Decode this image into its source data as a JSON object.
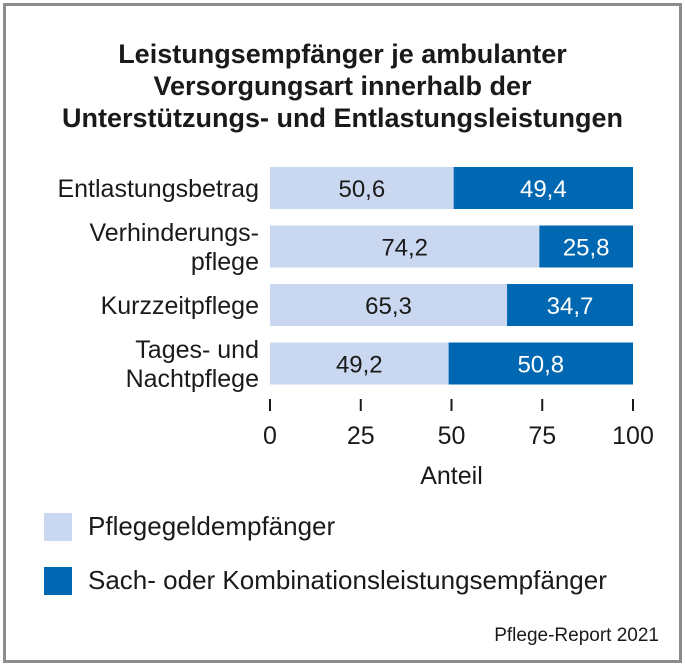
{
  "colors": {
    "series1": "#c9d8f0",
    "series2": "#0068b3",
    "border": "#8c8c8c"
  },
  "chart_data": {
    "type": "bar",
    "orientation": "horizontal",
    "stacked": true,
    "title": [
      "Leistungsempfänger je ambulanter",
      "Versorgungsart innerhalb der",
      "Unterstützungs- und Entlastungsleistungen"
    ],
    "categories": [
      [
        "Entlastungsbetrag"
      ],
      [
        "Verhinderungs-",
        "pflege"
      ],
      [
        "Kurzzeitpflege"
      ],
      [
        "Tages- und",
        "Nachtpflege"
      ]
    ],
    "series": [
      {
        "name": "Pflegegeldempfänger",
        "values": [
          50.6,
          74.2,
          65.3,
          49.2
        ],
        "labels": [
          "50,6",
          "74,2",
          "65,3",
          "49,2"
        ]
      },
      {
        "name": "Sach- oder Kombinationsleistungsempfänger",
        "values": [
          49.4,
          25.8,
          34.7,
          50.8
        ],
        "labels": [
          "49,4",
          "25,8",
          "34,7",
          "50,8"
        ]
      }
    ],
    "xlabel": "Anteil",
    "xlim": [
      0,
      100
    ],
    "xticks": [
      0,
      25,
      50,
      75,
      100
    ],
    "xtick_labels": [
      "0",
      "25",
      "50",
      "75",
      "100"
    ]
  },
  "source": "Pflege-Report 2021"
}
